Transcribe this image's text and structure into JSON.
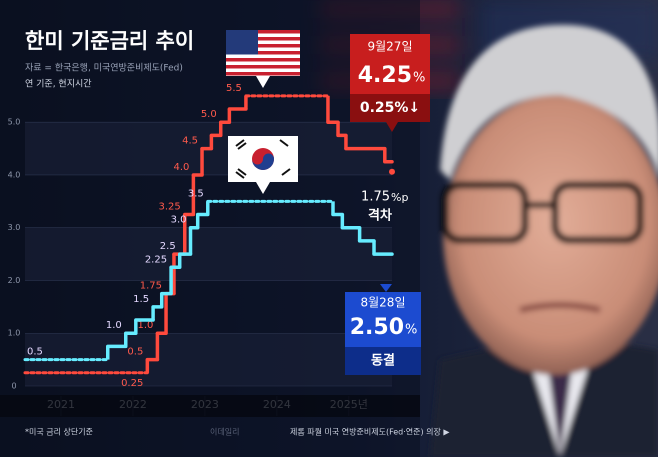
{
  "chart_data": {
    "type": "step",
    "title": "한미 기준금리 추이",
    "source": "자료 = 한국은행, 미국연방준비제도(Fed)",
    "subtitle": "연 기준, 현지시간",
    "note": "*미국 금리 상단기준",
    "watermark": "이데일리",
    "credit": "제롬 파월 미국 연방준비제도(Fed·연준) 의장 ▶",
    "xlim": [
      2020.5,
      2025.6
    ],
    "xticks": [
      2021,
      2022,
      2023,
      2024,
      {
        "value": 2025,
        "label": "2025년"
      }
    ],
    "ylim": [
      0,
      5.8
    ],
    "yticks": [
      0,
      {
        "value": 1,
        "label": "1.0"
      },
      {
        "value": 2,
        "label": "2.0"
      },
      {
        "value": 3,
        "label": "3.0"
      },
      {
        "value": 4,
        "label": "4.0"
      },
      {
        "value": 5,
        "label": "5.0"
      }
    ],
    "grid": true,
    "series": [
      {
        "color": "#ff4a3d",
        "label_color": "#ff5a4c",
        "x": [
          2020.5,
          2022.2,
          2022.34,
          2022.46,
          2022.57,
          2022.72,
          2022.84,
          2022.96,
          2023.09,
          2023.22,
          2023.34,
          2023.57,
          2024.71,
          2024.85,
          2024.96,
          2025.5
        ],
        "values": [
          0.25,
          0.5,
          1,
          1.75,
          2.5,
          3.25,
          4,
          4.5,
          4.75,
          5,
          5.25,
          5.5,
          5,
          4.75,
          4.5,
          4.25
        ],
        "value_labels": [
          "0.25",
          "0.5",
          "1.0",
          "1.75",
          null,
          "3.25",
          "4.0",
          "4.5",
          null,
          "5.0",
          null,
          "5.5",
          null,
          null,
          null,
          null
        ]
      },
      {
        "color": "#66ecff",
        "label_color": "#e4d8ff",
        "x": [
          2020.5,
          2021.65,
          2021.9,
          2022.04,
          2022.28,
          2022.4,
          2022.53,
          2022.65,
          2022.8,
          2022.9,
          2023.04,
          2024.78,
          2024.91,
          2025.15,
          2025.35
        ],
        "values": [
          0.5,
          0.75,
          1,
          1.25,
          1.5,
          1.75,
          2.25,
          2.5,
          3,
          3.25,
          3.5,
          3.25,
          3,
          2.75,
          2.5
        ],
        "value_labels": [
          "0.5",
          null,
          "1.0",
          null,
          "1.5",
          null,
          "2.25",
          "2.5",
          "3.0",
          null,
          "3.5",
          null,
          null,
          null,
          null
        ]
      }
    ],
    "annotations": {
      "us": {
        "date": "9월27일",
        "rate": "4.25",
        "unit": "%",
        "change": "0.25%↓"
      },
      "korea": {
        "date": "8월28일",
        "rate": "2.50",
        "unit": "%",
        "status": "동결"
      },
      "gap": {
        "value": "1.75",
        "unit": "%p",
        "label": "격차"
      }
    }
  }
}
